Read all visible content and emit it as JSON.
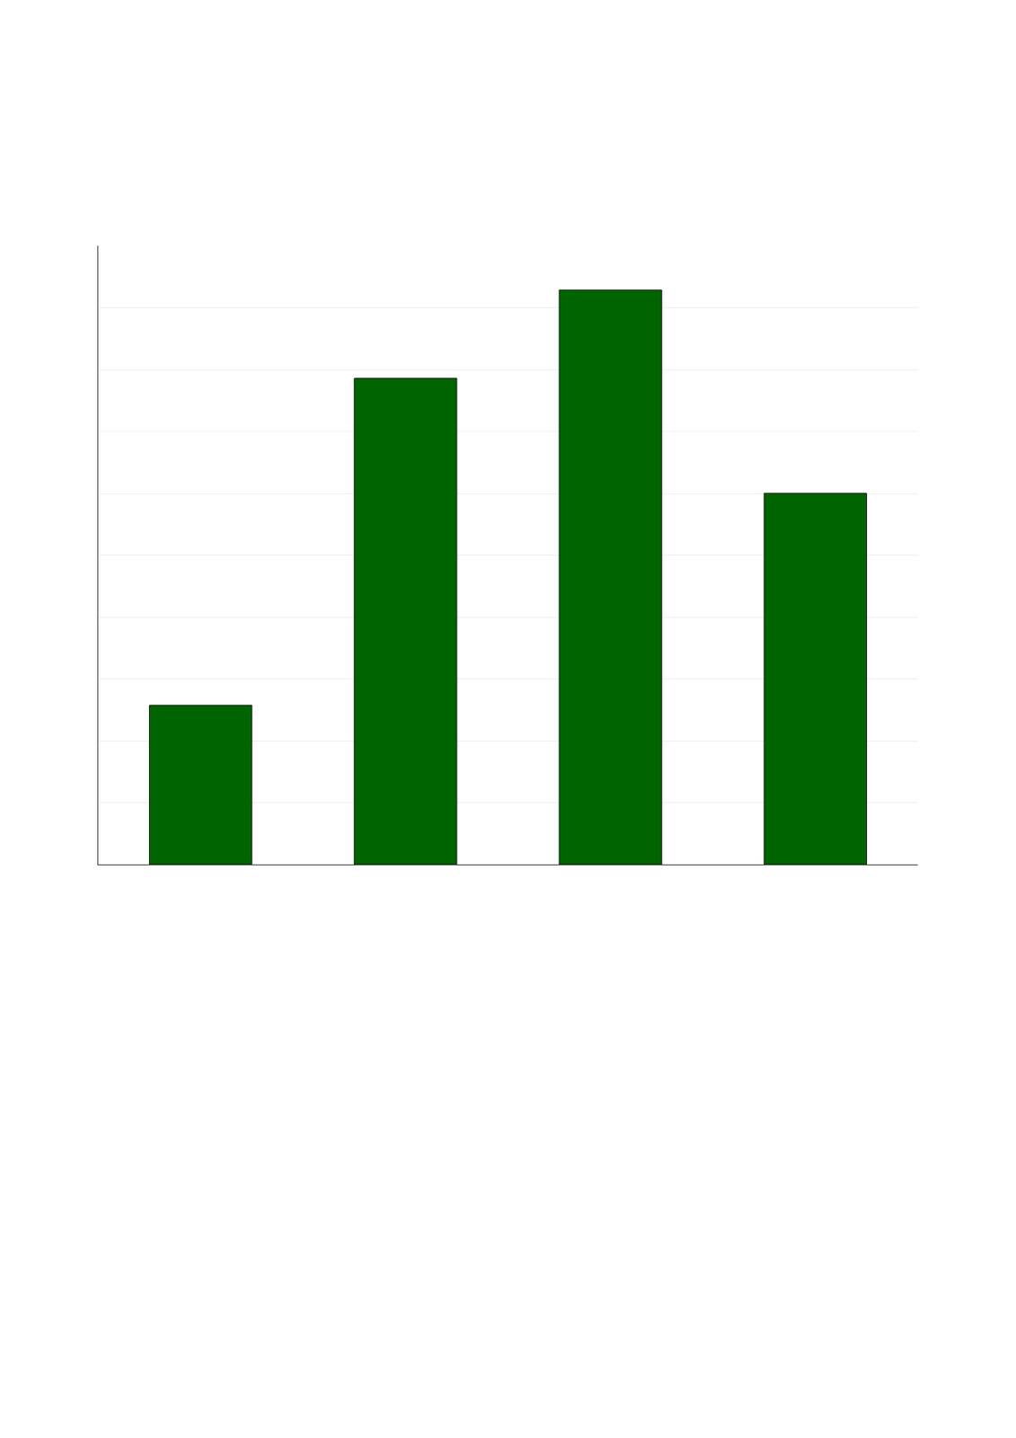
{
  "chart_data": {
    "type": "bar",
    "categories": [
      null,
      null,
      null,
      null
    ],
    "values": [
      0.18,
      0.55,
      0.65,
      0.42
    ],
    "color": "#006400",
    "ylim": [
      0,
      0.7
    ],
    "yticks": [
      0,
      0.07,
      0.14,
      0.21,
      0.28,
      0.35,
      0.42,
      0.49,
      0.56,
      0.63,
      0.7
    ],
    "grid": true,
    "tick_labels": false
  }
}
